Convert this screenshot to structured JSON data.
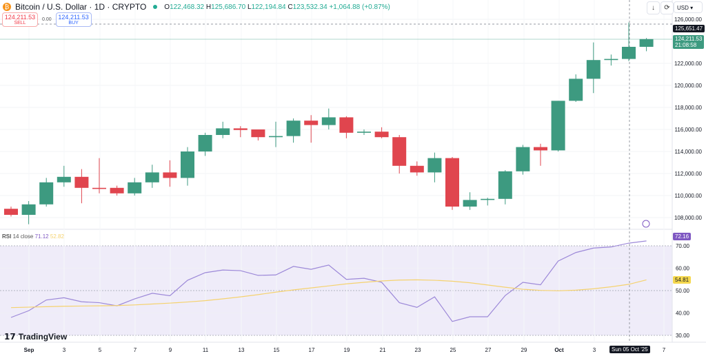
{
  "header": {
    "title": "Bitcoin / U.S. Dollar · 1D · CRYPTO",
    "o_label": "O",
    "o": "122,468.32",
    "h_label": "H",
    "h": "125,686.70",
    "l_label": "L",
    "l": "122,194.84",
    "c_label": "C",
    "c": "123,532.34",
    "change": "+1,064.88 (+0.87%)"
  },
  "trade": {
    "sell_price": "124,211.53",
    "sell_label": "SELL",
    "spread": "0.00",
    "buy_price": "124,211.53",
    "buy_label": "BUY"
  },
  "toolbar": {
    "currency": "USD"
  },
  "price_axis": {
    "labels": [
      "126,000.00",
      "122,000.00",
      "120,000.00",
      "118,000.00",
      "116,000.00",
      "114,000.00",
      "112,000.00",
      "110,000.00",
      "108,000.00"
    ],
    "crosshair_price": "125,651.47",
    "last_price": "124,211.53",
    "countdown": "21:08:58"
  },
  "rsi": {
    "name": "RSI",
    "params": "14 close",
    "value": "71.12",
    "ma_value": "52.82",
    "axis_labels": [
      "70.00",
      "60.00",
      "50.00",
      "40.00",
      "30.00"
    ],
    "last_rsi": "72.16",
    "last_ma": "54.81"
  },
  "time_axis": {
    "labels": [
      "Sep",
      "3",
      "5",
      "7",
      "9",
      "11",
      "13",
      "15",
      "17",
      "19",
      "21",
      "23",
      "25",
      "27",
      "29",
      "Oct",
      "3",
      "7"
    ],
    "crosshair_date": "Sun 05 Oct '25"
  },
  "brand": "TradingView",
  "colors": {
    "up": "#3d9a80",
    "down": "#e0454e",
    "rsi": "#9c88d8",
    "ma": "#f5d26e",
    "rsi_band": "#efecf9"
  },
  "chart_data": {
    "type": "candlestick",
    "dates": [
      "Aug 31",
      "Sep 1",
      "Sep 2",
      "Sep 3",
      "Sep 4",
      "Sep 5",
      "Sep 6",
      "Sep 7",
      "Sep 8",
      "Sep 9",
      "Sep 10",
      "Sep 11",
      "Sep 12",
      "Sep 13",
      "Sep 14",
      "Sep 15",
      "Sep 16",
      "Sep 17",
      "Sep 18",
      "Sep 19",
      "Sep 20",
      "Sep 21",
      "Sep 22",
      "Sep 23",
      "Sep 24",
      "Sep 25",
      "Sep 26",
      "Sep 27",
      "Sep 28",
      "Sep 29",
      "Sep 30",
      "Oct 1",
      "Oct 2",
      "Oct 3",
      "Oct 4",
      "Oct 5",
      "Oct 6"
    ],
    "ohlc": [
      [
        108800,
        109000,
        108100,
        108250
      ],
      [
        108250,
        109500,
        107400,
        109200
      ],
      [
        109200,
        111600,
        109000,
        111200
      ],
      [
        111200,
        112700,
        110800,
        111700
      ],
      [
        111700,
        112400,
        109300,
        110700
      ],
      [
        110700,
        113400,
        110200,
        110600
      ],
      [
        110700,
        110900,
        110000,
        110200
      ],
      [
        110200,
        111600,
        110000,
        111200
      ],
      [
        111200,
        112800,
        110700,
        112100
      ],
      [
        112100,
        113200,
        110800,
        111600
      ],
      [
        111600,
        114400,
        110900,
        114000
      ],
      [
        114000,
        115700,
        113600,
        115500
      ],
      [
        115500,
        116700,
        115200,
        116100
      ],
      [
        116100,
        116300,
        115300,
        115950
      ],
      [
        116000,
        116000,
        115000,
        115300
      ],
      [
        115300,
        116700,
        114400,
        115400
      ],
      [
        115400,
        117000,
        114800,
        116800
      ],
      [
        116800,
        117300,
        114800,
        116400
      ],
      [
        116400,
        117900,
        116000,
        117100
      ],
      [
        117100,
        117200,
        115200,
        115700
      ],
      [
        115700,
        116000,
        115500,
        115800
      ],
      [
        115800,
        116200,
        115200,
        115300
      ],
      [
        115300,
        115500,
        112000,
        112700
      ],
      [
        112700,
        113100,
        111800,
        112100
      ],
      [
        112100,
        113900,
        111200,
        113400
      ],
      [
        113400,
        113500,
        108700,
        109000
      ],
      [
        109000,
        110300,
        108700,
        109600
      ],
      [
        109600,
        109800,
        109100,
        109700
      ],
      [
        109700,
        112300,
        109200,
        112200
      ],
      [
        112200,
        114600,
        111900,
        114400
      ],
      [
        114400,
        114700,
        112700,
        114100
      ],
      [
        114100,
        118600,
        114000,
        118600
      ],
      [
        118600,
        121000,
        118500,
        120600
      ],
      [
        120600,
        123900,
        119300,
        122300
      ],
      [
        122300,
        122800,
        121800,
        122400
      ],
      [
        122400,
        125700,
        122200,
        123500
      ],
      [
        123500,
        124300,
        123100,
        124200
      ]
    ],
    "rsi": [
      38,
      41,
      45.8,
      46.8,
      45,
      44.6,
      43.2,
      46.3,
      48.8,
      47.7,
      54.6,
      58,
      59.2,
      58.9,
      56.8,
      57,
      60.8,
      59.5,
      61.4,
      55,
      55.5,
      53.7,
      44.6,
      42.5,
      47.2,
      36.2,
      38.3,
      38.3,
      47.8,
      53.7,
      52.6,
      63.2,
      67,
      69,
      69.5,
      71.2,
      72.2
    ],
    "rsi_ma": [
      42.4,
      42.6,
      42.8,
      43,
      43.1,
      43.2,
      43.3,
      43.6,
      44,
      44.4,
      44.9,
      45.5,
      46.3,
      47.2,
      48.2,
      49.3,
      50.3,
      51.2,
      52.1,
      53,
      53.7,
      54.3,
      54.7,
      54.8,
      54.6,
      54.2,
      53.5,
      52.5,
      51.5,
      50.6,
      50.1,
      49.9,
      50.2,
      50.8,
      51.7,
      52.8,
      54.8
    ],
    "price_range": [
      107000,
      126600
    ],
    "rsi_range": [
      25,
      80
    ]
  }
}
